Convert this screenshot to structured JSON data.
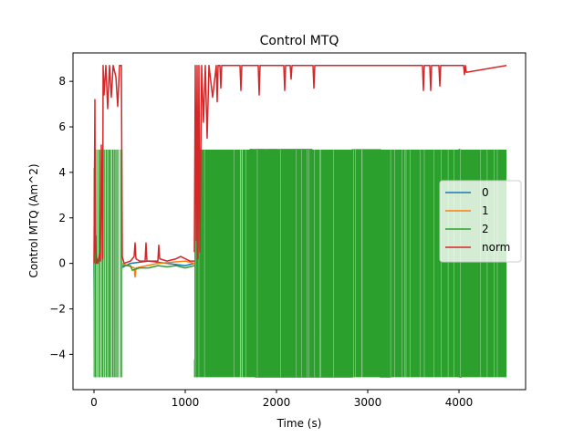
{
  "chart_data": {
    "type": "line",
    "title": "Control MTQ",
    "xlabel": "Time (s)",
    "ylabel": "Control MTQ (Am^2)",
    "xlim": [
      -230,
      4730
    ],
    "ylim": [
      -5.55,
      9.25
    ],
    "xticks": [
      0,
      1000,
      2000,
      3000,
      4000
    ],
    "yticks": [
      -4,
      -2,
      0,
      2,
      4,
      6,
      8
    ],
    "grid": false,
    "legend_position": "right",
    "colors": {
      "s0": "#1f77b4",
      "s1": "#ff7f0e",
      "s2": "#2ca02c",
      "norm": "#d62728"
    },
    "series": [
      {
        "name": "0",
        "color": "#1f77b4",
        "segments": [
          {
            "x": [
              0,
              8,
              12,
              20,
              30,
              60,
              90,
              110,
              150,
              200,
              260,
              300,
              400,
              600,
              800,
              1000,
              1100,
              1200,
              1300,
              1600,
              2000,
              2400,
              2800,
              3200,
              3600,
              4000,
              4100,
              4500
            ],
            "y": [
              0,
              -4.9,
              -2.8,
              0,
              0.1,
              -0.2,
              0.0,
              -0.3,
              0.2,
              -0.1,
              0.1,
              -0.2,
              0.0,
              0.1,
              0.0,
              -0.1,
              0.0,
              0.2,
              -0.1,
              0.1,
              -0.2,
              0.2,
              0.0,
              -0.1,
              0.1,
              -0.2,
              0.1,
              0.0
            ]
          },
          {
            "x": [
              4000,
              4000,
              4010,
              4010,
              4020,
              4020
            ],
            "y": [
              -5.0,
              5.0,
              5.0,
              -5.0,
              -5.0,
              5.0
            ]
          },
          {
            "x": [
              1710,
              1710,
              2390,
              2390
            ],
            "y": [
              -5.0,
              5.0,
              5.0,
              -5.0
            ]
          }
        ]
      },
      {
        "name": "1",
        "color": "#ff7f0e",
        "segments": [
          {
            "x": [
              0,
              100,
              200,
              300,
              440,
              450,
              460,
              700,
              1000,
              1100,
              1600,
              2400,
              3200,
              4000,
              4500
            ],
            "y": [
              0,
              0.1,
              -0.1,
              0.0,
              -0.2,
              -0.6,
              -0.2,
              0.0,
              0.1,
              0.0,
              -0.1,
              0.1,
              0.0,
              -0.1,
              0.0
            ]
          },
          {
            "x": [
              1760,
              1760,
              1770,
              1770,
              1880,
              1880,
              1890,
              1890,
              2020,
              2020,
              2030,
              2030,
              2830,
              2830,
              3140,
              3140,
              3250,
              3250
            ],
            "y": [
              -5.0,
              5.0,
              5.0,
              -5.0,
              -5.0,
              5.0,
              5.0,
              -5.0,
              -5.0,
              5.0,
              5.0,
              -5.0,
              -5.0,
              5.0,
              5.0,
              -5.0,
              -5.0,
              5.0
            ]
          }
        ]
      },
      {
        "name": "2",
        "color": "#2ca02c",
        "blocks": [
          {
            "x0": 0,
            "x1": 310,
            "y0": -5.0,
            "y1": 5.0
          },
          {
            "x0": 1100,
            "x1": 4520,
            "y0": -5.0,
            "y1": 5.0
          }
        ],
        "segments": [
          {
            "x": [
              310,
              400,
              420,
              500,
              600,
              700,
              800,
              900,
              1000,
              1050,
              1100
            ],
            "y": [
              -0.1,
              -0.1,
              -0.3,
              -0.2,
              -0.2,
              -0.1,
              -0.15,
              -0.1,
              -0.2,
              -0.15,
              -0.1
            ]
          }
        ]
      },
      {
        "name": "norm",
        "color": "#d62728",
        "segments": [
          {
            "x": [
              0,
              10,
              15,
              20,
              25,
              30,
              40,
              60,
              70,
              80,
              95,
              100,
              110,
              130,
              150,
              170,
              190,
              210,
              240,
              260,
              280,
              300,
              310,
              330,
              400,
              440,
              450,
              460,
              500,
              560,
              570,
              580,
              650,
              700,
              710,
              720,
              800,
              900,
              950,
              1000,
              1050,
              1100
            ],
            "y": [
              0.0,
              7.2,
              0.5,
              1.2,
              0.0,
              0.2,
              0.0,
              0.4,
              0.1,
              5.2,
              0.2,
              8.7,
              7.4,
              8.7,
              6.8,
              8.7,
              7.3,
              8.7,
              8.2,
              6.9,
              8.7,
              8.7,
              0.3,
              0.0,
              0.1,
              0.3,
              0.9,
              0.2,
              0.1,
              0.1,
              0.9,
              0.1,
              0.1,
              0.1,
              0.8,
              0.2,
              0.1,
              0.2,
              0.3,
              0.2,
              0.1,
              0.1
            ]
          },
          {
            "x": [
              1100,
              1110,
              1120,
              1130,
              1140,
              1150,
              1160,
              1180,
              1200,
              1220,
              1240,
              1260,
              1300,
              1340,
              1350,
              1360,
              1380,
              1390,
              1400,
              1600,
              1610,
              1620,
              1800,
              1810,
              1820,
              2080,
              2090,
              2100,
              2150,
              2160,
              2170,
              2400,
              2410,
              2420,
              3600,
              3610,
              3620,
              3680,
              3690,
              3700,
              3780,
              3790,
              3800,
              4050,
              4060,
              4070,
              4080,
              4520
            ],
            "y": [
              0.5,
              8.7,
              1.0,
              8.7,
              0.2,
              8.7,
              0.5,
              8.7,
              6.2,
              8.7,
              5.5,
              8.7,
              7.3,
              8.7,
              7.1,
              8.7,
              8.7,
              7.7,
              8.7,
              8.7,
              7.6,
              8.7,
              8.7,
              7.4,
              8.7,
              8.7,
              7.6,
              8.7,
              8.7,
              8.1,
              8.7,
              8.7,
              7.7,
              8.7,
              8.7,
              7.6,
              8.7,
              8.7,
              7.6,
              8.7,
              8.7,
              7.8,
              8.7,
              8.7,
              8.3,
              8.7,
              8.4,
              8.7
            ]
          }
        ]
      }
    ],
    "legend": [
      "0",
      "1",
      "2",
      "norm"
    ]
  }
}
